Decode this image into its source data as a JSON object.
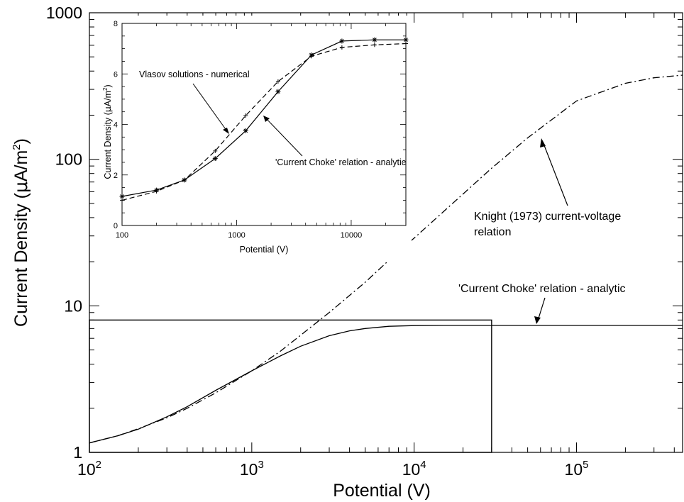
{
  "chart_data": [
    {
      "type": "line",
      "xlabel": "Potential (V)",
      "ylabel_main": "Current Density (",
      "ylabel_mu": "μ",
      "ylabel_unit": "A/m",
      "ylabel_exp": "2",
      "ylabel_close": ")",
      "xscale": "log",
      "yscale": "log",
      "xlim": [
        100,
        450000
      ],
      "ylim": [
        1,
        1000
      ],
      "x_tick_values": [
        100,
        1000,
        10000,
        100000
      ],
      "x_tick_labels": [
        {
          "base": "10",
          "exp": "2"
        },
        {
          "base": "10",
          "exp": "3"
        },
        {
          "base": "10",
          "exp": "4"
        },
        {
          "base": "10",
          "exp": "5"
        }
      ],
      "y_tick_values": [
        1,
        10,
        100,
        1000
      ],
      "y_tick_labels": [
        "1",
        "10",
        "100",
        "1000"
      ],
      "grid": false,
      "series": [
        {
          "name": "Knight (1973) current-voltage relation",
          "style": "dash-dot",
          "x": [
            100,
            150,
            200,
            300,
            400,
            600,
            1000,
            1500,
            2000,
            3000,
            5000,
            8000,
            10000,
            20000,
            30000,
            50000,
            100000,
            200000,
            300000,
            450000
          ],
          "y": [
            1.16,
            1.3,
            1.45,
            1.72,
            2.0,
            2.55,
            3.6,
            4.9,
            6.3,
            9.0,
            14.5,
            23.5,
            29,
            58,
            87,
            140,
            250,
            330,
            360,
            375
          ]
        },
        {
          "name": "'Current Choke' relation - analytic",
          "style": "solid",
          "x": [
            100,
            150,
            200,
            300,
            400,
            600,
            1000,
            1500,
            2000,
            3000,
            4000,
            5000,
            7000,
            10000,
            15000,
            20000,
            30000,
            100000,
            450000
          ],
          "y": [
            1.16,
            1.3,
            1.44,
            1.75,
            2.05,
            2.65,
            3.6,
            4.55,
            5.3,
            6.25,
            6.75,
            7.0,
            7.25,
            7.33,
            7.35,
            7.35,
            7.35,
            7.35,
            7.35
          ]
        }
      ],
      "annotations": [
        {
          "text": "Knight (1973) current-voltage",
          "text2": "relation",
          "x": 55000,
          "y": 150
        },
        {
          "text": "'Current Choke' relation - analytic",
          "x": 33000,
          "y": 7.35
        }
      ],
      "inset_box": {
        "x": [
          100,
          30000
        ],
        "y": [
          1,
          8
        ]
      }
    },
    {
      "type": "line",
      "xlabel": "Potential (V)",
      "ylabel_main": "Current Density (",
      "ylabel_mu": "μ",
      "ylabel_unit": "A/m",
      "ylabel_exp": "2",
      "ylabel_close": ")",
      "xscale": "log",
      "yscale": "linear",
      "xlim": [
        100,
        30000
      ],
      "ylim": [
        0,
        8
      ],
      "x_tick_values": [
        100,
        1000,
        10000
      ],
      "x_tick_labels": [
        "100",
        "1000",
        "10000"
      ],
      "y_tick_values": [
        0,
        2,
        4,
        6,
        8
      ],
      "y_tick_labels": [
        "0",
        "2",
        "4",
        "6",
        "8"
      ],
      "grid": false,
      "series": [
        {
          "name": "Vlasov solutions - numerical",
          "style": "dashed",
          "marker": "plus",
          "x": [
            100,
            200,
            350,
            650,
            1200,
            2300,
            4500,
            8300,
            16000,
            30000
          ],
          "y": [
            1.0,
            1.35,
            1.8,
            2.95,
            4.35,
            5.7,
            6.7,
            7.05,
            7.15,
            7.2
          ]
        },
        {
          "name": "'Current Choke' relation - analytic",
          "style": "solid",
          "marker": "asterisk",
          "x": [
            100,
            200,
            350,
            650,
            1200,
            2300,
            4500,
            8300,
            16000,
            30000
          ],
          "y": [
            1.15,
            1.4,
            1.8,
            2.65,
            3.75,
            5.3,
            6.75,
            7.3,
            7.35,
            7.35
          ]
        }
      ],
      "annotations": [
        {
          "text": "Vlasov solutions - numerical"
        },
        {
          "text": "'Current Choke' relation - analytic"
        }
      ]
    }
  ]
}
